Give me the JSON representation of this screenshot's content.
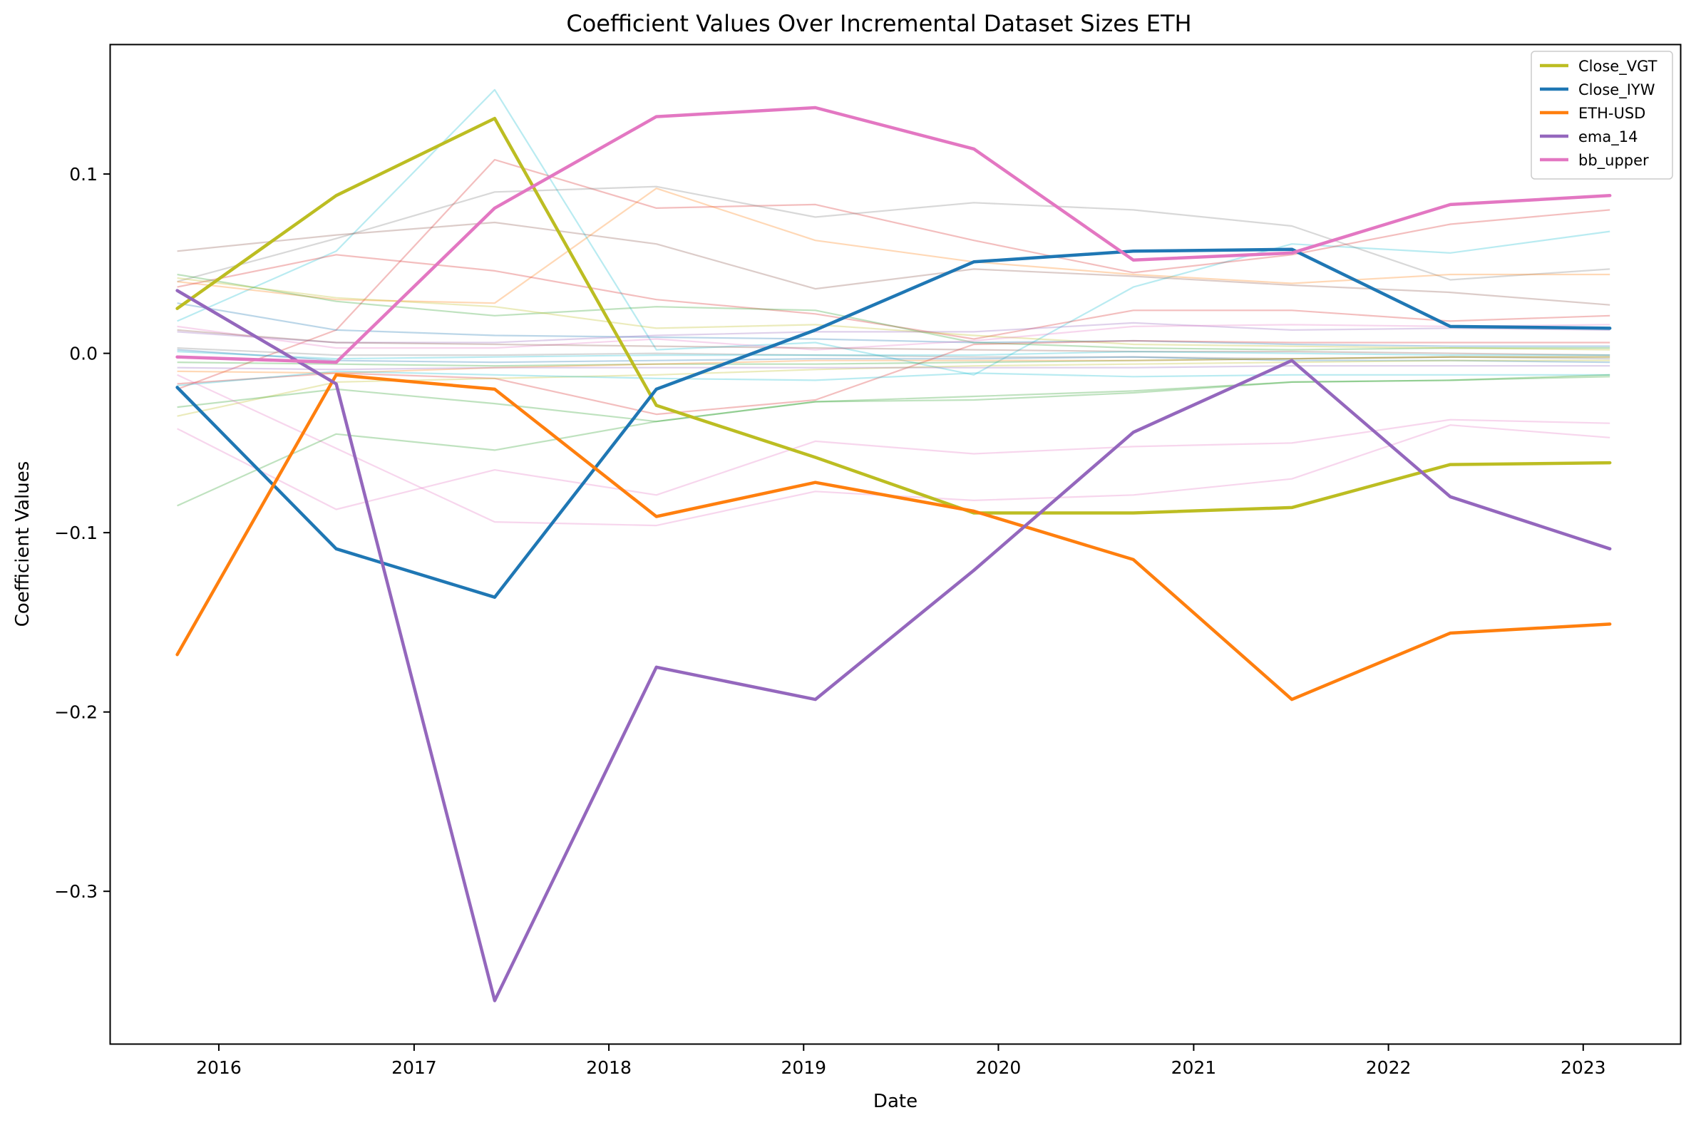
{
  "chart_data": {
    "type": "line",
    "title": "Coefficient Values Over Incremental Dataset Sizes ETH",
    "xlabel": "Date",
    "ylabel": "Coefficient Values",
    "x": [
      "2015-10-15",
      "2016-08-08",
      "2017-06-01",
      "2018-03-31",
      "2019-01-23",
      "2019-11-16",
      "2020-09-10",
      "2021-07-04",
      "2022-04-27",
      "2023-02-20"
    ],
    "x_ticks": [
      "2016",
      "2017",
      "2018",
      "2019",
      "2020",
      "2021",
      "2022",
      "2023"
    ],
    "y_ticks": [
      0.1,
      0.0,
      -0.1,
      -0.2,
      -0.3
    ],
    "y_tick_labels": [
      "0.1",
      "0.0",
      "−0.1",
      "−0.2",
      "−0.3"
    ],
    "xlim": [
      "2015-06-12",
      "2023-07-02"
    ],
    "ylim": [
      -0.385,
      0.172
    ],
    "grid": false,
    "legend_position": "top-right",
    "series": [
      {
        "name": "Close_VGT",
        "color": "#bcbd22",
        "values": [
          0.025,
          0.088,
          0.131,
          -0.029,
          -0.058,
          -0.089,
          -0.089,
          -0.086,
          -0.062,
          -0.061
        ]
      },
      {
        "name": "Close_IYW",
        "color": "#1f77b4",
        "values": [
          -0.019,
          -0.109,
          -0.136,
          -0.02,
          0.013,
          0.051,
          0.057,
          0.058,
          0.015,
          0.014
        ]
      },
      {
        "name": "ETH-USD",
        "color": "#ff7f0e",
        "values": [
          -0.168,
          -0.012,
          -0.02,
          -0.091,
          -0.072,
          -0.088,
          -0.115,
          -0.193,
          -0.156,
          -0.151
        ]
      },
      {
        "name": "ema_14",
        "color": "#9467bd",
        "values": [
          0.035,
          -0.017,
          -0.361,
          -0.175,
          -0.193,
          -0.121,
          -0.044,
          -0.004,
          -0.08,
          -0.109
        ]
      },
      {
        "name": "bb_upper",
        "color": "#e377c2",
        "values": [
          -0.002,
          -0.005,
          0.081,
          0.132,
          0.137,
          0.114,
          0.052,
          0.056,
          0.083,
          0.088
        ]
      }
    ],
    "background_series": [
      {
        "color": "#17becf",
        "values": [
          0.018,
          0.057,
          0.147,
          0.002,
          0.006,
          -0.012,
          0.037,
          0.061,
          0.056,
          0.068
        ]
      },
      {
        "color": "#d62728",
        "values": [
          -0.02,
          0.013,
          0.108,
          0.081,
          0.083,
          0.063,
          0.045,
          0.055,
          0.072,
          0.08
        ]
      },
      {
        "color": "#7f7f7f",
        "values": [
          0.04,
          0.064,
          0.09,
          0.093,
          0.076,
          0.084,
          0.08,
          0.071,
          0.041,
          0.047
        ]
      },
      {
        "color": "#8c564b",
        "values": [
          0.057,
          0.066,
          0.073,
          0.061,
          0.036,
          0.047,
          0.043,
          0.038,
          0.034,
          0.027
        ]
      },
      {
        "color": "#ff7f0e",
        "values": [
          0.04,
          0.03,
          0.028,
          0.092,
          0.063,
          0.051,
          0.044,
          0.039,
          0.044,
          0.044
        ]
      },
      {
        "color": "#d62728",
        "values": [
          0.037,
          0.055,
          0.046,
          0.03,
          0.022,
          0.008,
          0.024,
          0.024,
          0.018,
          0.021
        ]
      },
      {
        "color": "#2ca02c",
        "values": [
          0.044,
          0.029,
          0.021,
          0.026,
          0.024,
          0.006,
          0.003,
          0.002,
          0.003,
          0.003
        ]
      },
      {
        "color": "#bcbd22",
        "values": [
          0.042,
          0.031,
          0.026,
          0.014,
          0.016,
          0.01,
          0.005,
          0.004,
          0.003,
          0.002
        ]
      },
      {
        "color": "#1f77b4",
        "values": [
          0.028,
          0.013,
          0.01,
          0.009,
          0.008,
          0.006,
          0.007,
          0.005,
          0.004,
          0.004
        ]
      },
      {
        "color": "#9467bd",
        "values": [
          0.012,
          0.006,
          0.006,
          0.01,
          0.012,
          0.012,
          0.017,
          0.013,
          0.014,
          0.013
        ]
      },
      {
        "color": "#e377c2",
        "values": [
          0.015,
          0.003,
          0.003,
          0.008,
          0.002,
          0.007,
          0.015,
          0.016,
          0.015,
          0.016
        ]
      },
      {
        "color": "#8c564b",
        "values": [
          0.013,
          0.006,
          0.005,
          0.004,
          0.003,
          0.002,
          0.001,
          0.001,
          0.0,
          -0.001
        ]
      },
      {
        "color": "#7f7f7f",
        "values": [
          0.003,
          -0.001,
          -0.001,
          0.0,
          -0.001,
          -0.002,
          -0.002,
          -0.003,
          -0.002,
          -0.003
        ]
      },
      {
        "color": "#17becf",
        "values": [
          0.001,
          -0.003,
          -0.002,
          -0.001,
          -0.001,
          -0.001,
          0.001,
          0.0,
          -0.001,
          -0.001
        ]
      },
      {
        "color": "#1f77b4",
        "values": [
          0.002,
          -0.004,
          -0.005,
          -0.004,
          -0.003,
          -0.003,
          -0.002,
          -0.004,
          -0.004,
          -0.005
        ]
      },
      {
        "color": "#d62728",
        "values": [
          -0.017,
          -0.011,
          -0.014,
          -0.034,
          -0.026,
          0.005,
          0.007,
          0.006,
          0.006,
          0.006
        ]
      },
      {
        "color": "#2ca02c",
        "values": [
          -0.005,
          -0.006,
          -0.007,
          -0.006,
          -0.006,
          -0.005,
          -0.004,
          -0.003,
          -0.002,
          -0.002
        ]
      },
      {
        "color": "#ff7f0e",
        "values": [
          -0.01,
          -0.011,
          -0.008,
          -0.006,
          -0.004,
          -0.004,
          -0.004,
          -0.003,
          -0.002,
          -0.002
        ]
      },
      {
        "color": "#bcbd22",
        "values": [
          -0.035,
          -0.016,
          -0.014,
          -0.012,
          -0.009,
          -0.007,
          -0.006,
          -0.005,
          -0.004,
          -0.004
        ]
      },
      {
        "color": "#17becf",
        "values": [
          -0.018,
          -0.01,
          -0.012,
          -0.014,
          -0.015,
          -0.011,
          -0.013,
          -0.012,
          -0.012,
          -0.012
        ]
      },
      {
        "color": "#9467bd",
        "values": [
          -0.008,
          -0.009,
          -0.008,
          -0.008,
          -0.008,
          -0.008,
          -0.008,
          -0.007,
          -0.007,
          -0.007
        ]
      },
      {
        "color": "#2ca02c",
        "values": [
          -0.03,
          -0.02,
          -0.028,
          -0.038,
          -0.027,
          -0.024,
          -0.021,
          -0.016,
          -0.015,
          -0.012
        ]
      },
      {
        "color": "#e377c2",
        "values": [
          -0.042,
          -0.087,
          -0.065,
          -0.079,
          -0.049,
          -0.056,
          -0.052,
          -0.05,
          -0.037,
          -0.039
        ]
      },
      {
        "color": "#e377c2",
        "values": [
          -0.012,
          -0.053,
          -0.094,
          -0.096,
          -0.077,
          -0.082,
          -0.079,
          -0.07,
          -0.04,
          -0.047
        ]
      },
      {
        "color": "#2ca02c",
        "values": [
          -0.085,
          -0.045,
          -0.054,
          -0.038,
          -0.027,
          -0.026,
          -0.022,
          -0.016,
          -0.015,
          -0.013
        ]
      }
    ]
  }
}
